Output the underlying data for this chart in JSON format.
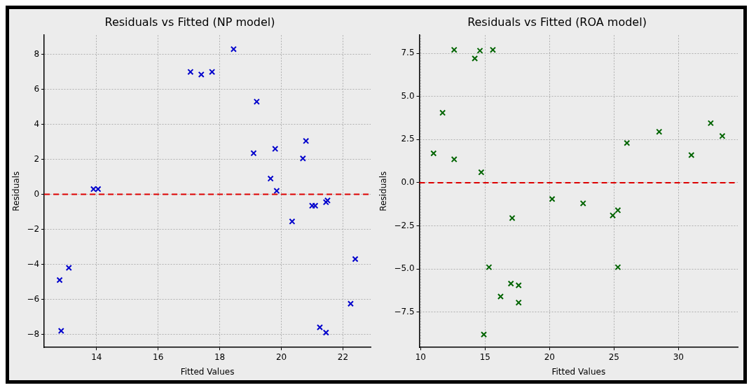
{
  "chart_data": [
    {
      "type": "scatter",
      "title": "Residuals vs Fitted (NP model)",
      "xlabel": "Fitted Values",
      "ylabel": "Residuals",
      "xlim": [
        12.3,
        22.9
      ],
      "xticks": [
        14,
        16,
        18,
        20,
        22
      ],
      "ylim": [
        -8.75,
        9.1
      ],
      "yticks": [
        -8,
        -6,
        -4,
        -2,
        0,
        2,
        4,
        6,
        8
      ],
      "grid": true,
      "marker": "cross",
      "ref_lines": [
        {
          "axis": "y",
          "value": 0,
          "color": "#dd0000",
          "line_style": "dashed"
        }
      ],
      "series": [
        {
          "color": "#0000cc",
          "x": [
            12.8,
            12.85,
            13.1,
            13.9,
            14.05,
            17.05,
            17.4,
            17.75,
            18.45,
            19.1,
            19.2,
            19.65,
            19.8,
            19.85,
            20.35,
            20.7,
            20.8,
            21.0,
            21.1,
            21.25,
            21.45,
            21.5,
            21.45,
            22.25,
            22.4
          ],
          "values": [
            -4.9,
            -7.8,
            -4.2,
            0.3,
            0.3,
            7.0,
            6.85,
            7.0,
            8.3,
            2.35,
            5.3,
            0.9,
            2.6,
            0.2,
            -1.55,
            2.05,
            3.05,
            -0.65,
            -0.65,
            -7.6,
            -0.45,
            -0.35,
            -7.9,
            -6.25,
            -3.7
          ]
        }
      ]
    },
    {
      "type": "scatter",
      "title": "Residuals vs Fitted (ROA model)",
      "xlabel": "Fitted Values",
      "ylabel": "Residuals",
      "xlim": [
        9.9,
        34.6
      ],
      "xticks": [
        10,
        15,
        20,
        25,
        30
      ],
      "ylim": [
        -9.55,
        8.55
      ],
      "yticks": [
        {
          "value": -7.5,
          "label": "−7.5"
        },
        {
          "value": -5,
          "label": "−5.0"
        },
        {
          "value": -2.5,
          "label": "−2.5"
        },
        {
          "value": 0,
          "label": "0.0"
        },
        {
          "value": 2.5,
          "label": "2.5"
        },
        {
          "value": 5,
          "label": "5.0"
        },
        {
          "value": 7.5,
          "label": "7.5"
        }
      ],
      "grid": true,
      "marker": "cross",
      "ref_lines": [
        {
          "axis": "y",
          "value": 0,
          "color": "#dd0000",
          "line_style": "dashed"
        }
      ],
      "series": [
        {
          "color": "#006400",
          "x": [
            11.0,
            11.7,
            12.6,
            12.6,
            14.2,
            14.6,
            14.7,
            15.6,
            15.3,
            14.9,
            16.2,
            17.0,
            17.1,
            17.6,
            17.6,
            20.2,
            22.6,
            24.9,
            25.3,
            25.3,
            26.0,
            28.5,
            31.0,
            32.5,
            33.4
          ],
          "values": [
            1.7,
            4.05,
            7.7,
            1.35,
            7.2,
            7.65,
            0.6,
            7.7,
            -4.9,
            -8.8,
            -6.6,
            -5.85,
            -2.05,
            -5.95,
            -6.95,
            -0.95,
            -1.2,
            -1.9,
            -1.6,
            -4.9,
            2.3,
            2.95,
            1.6,
            3.45,
            2.7
          ]
        }
      ]
    }
  ]
}
